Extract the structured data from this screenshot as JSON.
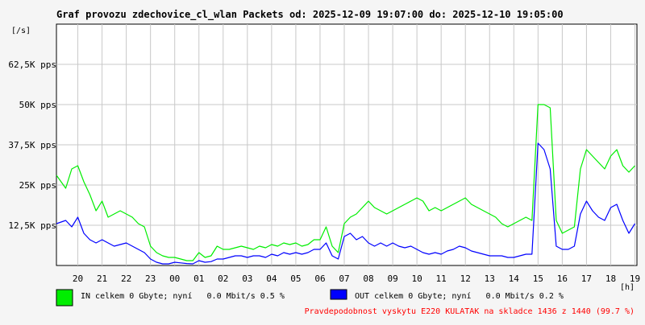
{
  "chart_data": {
    "type": "line",
    "title": "Graf provozu zdechovice_cl_wlan Packets od: 2025-12-09 19:07:00 do: 2025-12-10 19:05:00",
    "ylabel": "[/s]",
    "xlabel": "[h]",
    "ylim": [
      0,
      75000
    ],
    "y_ticks": [
      {
        "value": 12500,
        "label": "12,5K pps"
      },
      {
        "value": 25000,
        "label": "25K pps"
      },
      {
        "value": 37500,
        "label": "37,5K pps"
      },
      {
        "value": 50000,
        "label": "50K pps"
      },
      {
        "value": 62500,
        "label": "62,5K pps"
      }
    ],
    "xlim": [
      19.117,
      43.083
    ],
    "x_ticks": [
      {
        "value": 20,
        "label": "20"
      },
      {
        "value": 21,
        "label": "21"
      },
      {
        "value": 22,
        "label": "22"
      },
      {
        "value": 23,
        "label": "23"
      },
      {
        "value": 24,
        "label": "00"
      },
      {
        "value": 25,
        "label": "01"
      },
      {
        "value": 26,
        "label": "02"
      },
      {
        "value": 27,
        "label": "03"
      },
      {
        "value": 28,
        "label": "04"
      },
      {
        "value": 29,
        "label": "05"
      },
      {
        "value": 30,
        "label": "06"
      },
      {
        "value": 31,
        "label": "07"
      },
      {
        "value": 32,
        "label": "08"
      },
      {
        "value": 33,
        "label": "09"
      },
      {
        "value": 34,
        "label": "10"
      },
      {
        "value": 35,
        "label": "11"
      },
      {
        "value": 36,
        "label": "12"
      },
      {
        "value": 37,
        "label": "13"
      },
      {
        "value": 38,
        "label": "14"
      },
      {
        "value": 39,
        "label": "15"
      },
      {
        "value": 40,
        "label": "16"
      },
      {
        "value": 41,
        "label": "17"
      },
      {
        "value": 42,
        "label": "18"
      },
      {
        "value": 43,
        "label": "19"
      }
    ],
    "grid": true,
    "series": [
      {
        "name": "IN celkem 0 Gbyte; nyní   0.0 Mbit/s 0.5 %",
        "color": "#00ee00",
        "x": [
          19.12,
          19.5,
          19.75,
          20.0,
          20.25,
          20.5,
          20.75,
          21.0,
          21.25,
          21.5,
          21.75,
          22.0,
          22.25,
          22.5,
          22.75,
          23.0,
          23.25,
          23.5,
          23.75,
          24.0,
          24.25,
          24.5,
          24.75,
          25.0,
          25.25,
          25.5,
          25.75,
          26.0,
          26.25,
          26.5,
          26.75,
          27.0,
          27.25,
          27.5,
          27.75,
          28.0,
          28.25,
          28.5,
          28.75,
          29.0,
          29.25,
          29.5,
          29.75,
          30.0,
          30.25,
          30.5,
          30.75,
          31.0,
          31.25,
          31.5,
          31.75,
          32.0,
          32.25,
          32.5,
          32.75,
          33.0,
          33.25,
          33.5,
          33.75,
          34.0,
          34.25,
          34.5,
          34.75,
          35.0,
          35.25,
          35.5,
          35.75,
          36.0,
          36.25,
          36.5,
          36.75,
          37.0,
          37.25,
          37.5,
          37.75,
          38.0,
          38.25,
          38.5,
          38.75,
          39.0,
          39.25,
          39.5,
          39.75,
          40.0,
          40.25,
          40.5,
          40.75,
          41.0,
          41.25,
          41.5,
          41.75,
          42.0,
          42.25,
          42.5,
          42.75,
          43.0
        ],
        "values": [
          28000,
          24000,
          30000,
          31000,
          26000,
          22000,
          17000,
          20000,
          15000,
          16000,
          17000,
          16000,
          15000,
          13000,
          12000,
          6000,
          4000,
          3000,
          2500,
          2500,
          2000,
          1500,
          1500,
          4000,
          2500,
          3000,
          6000,
          5000,
          5000,
          5500,
          6000,
          5500,
          5000,
          6000,
          5500,
          6500,
          6000,
          7000,
          6500,
          7000,
          6000,
          6500,
          8000,
          8000,
          12000,
          6000,
          4000,
          13000,
          15000,
          16000,
          18000,
          20000,
          18000,
          17000,
          16000,
          17000,
          18000,
          19000,
          20000,
          21000,
          20000,
          17000,
          18000,
          17000,
          18000,
          19000,
          20000,
          21000,
          19000,
          18000,
          17000,
          16000,
          15000,
          13000,
          12000,
          13000,
          14000,
          15000,
          14000,
          50000,
          50000,
          49000,
          14000,
          10000,
          11000,
          12000,
          30000,
          36000,
          34000,
          32000,
          30000,
          34000,
          36000,
          31000,
          29000,
          31000
        ]
      },
      {
        "name": "OUT celkem 0 Gbyte; nyní   0.0 Mbit/s 0.2 %",
        "color": "#0000ff",
        "x": [
          19.12,
          19.5,
          19.75,
          20.0,
          20.25,
          20.5,
          20.75,
          21.0,
          21.25,
          21.5,
          21.75,
          22.0,
          22.25,
          22.5,
          22.75,
          23.0,
          23.25,
          23.5,
          23.75,
          24.0,
          24.25,
          24.5,
          24.75,
          25.0,
          25.25,
          25.5,
          25.75,
          26.0,
          26.25,
          26.5,
          26.75,
          27.0,
          27.25,
          27.5,
          27.75,
          28.0,
          28.25,
          28.5,
          28.75,
          29.0,
          29.25,
          29.5,
          29.75,
          30.0,
          30.25,
          30.5,
          30.75,
          31.0,
          31.25,
          31.5,
          31.75,
          32.0,
          32.25,
          32.5,
          32.75,
          33.0,
          33.25,
          33.5,
          33.75,
          34.0,
          34.25,
          34.5,
          34.75,
          35.0,
          35.25,
          35.5,
          35.75,
          36.0,
          36.25,
          36.5,
          36.75,
          37.0,
          37.25,
          37.5,
          37.75,
          38.0,
          38.25,
          38.5,
          38.75,
          39.0,
          39.25,
          39.5,
          39.75,
          40.0,
          40.25,
          40.5,
          40.75,
          41.0,
          41.25,
          41.5,
          41.75,
          42.0,
          42.25,
          42.5,
          42.75,
          43.0
        ],
        "values": [
          13000,
          14000,
          12000,
          15000,
          10000,
          8000,
          7000,
          8000,
          7000,
          6000,
          6500,
          7000,
          6000,
          5000,
          4000,
          2000,
          1000,
          500,
          500,
          1000,
          800,
          600,
          500,
          1500,
          1000,
          1200,
          2000,
          2000,
          2500,
          3000,
          3000,
          2500,
          3000,
          3000,
          2500,
          3500,
          3000,
          4000,
          3500,
          4000,
          3500,
          4000,
          5000,
          5000,
          7000,
          3000,
          2000,
          9000,
          10000,
          8000,
          9000,
          7000,
          6000,
          7000,
          6000,
          7000,
          6000,
          5500,
          6000,
          5000,
          4000,
          3500,
          4000,
          3500,
          4500,
          5000,
          6000,
          5500,
          4500,
          4000,
          3500,
          3000,
          3000,
          3000,
          2500,
          2500,
          3000,
          3500,
          3500,
          38000,
          36000,
          30000,
          6000,
          5000,
          5000,
          6000,
          16000,
          20000,
          17000,
          15000,
          14000,
          18000,
          19000,
          14000,
          10000,
          13000
        ]
      }
    ]
  },
  "footer_note": "Pravdepodobnost vyskytu E220 KULATAK na skladce 1436 z 1440 (99.7 %)",
  "colors": {
    "background": "#f5f5f5",
    "plot_background": "#ffffff",
    "grid": "#c8c8c8",
    "in": "#00ee00",
    "out": "#0000ff",
    "note": "#ff0000",
    "text": "#000000"
  }
}
